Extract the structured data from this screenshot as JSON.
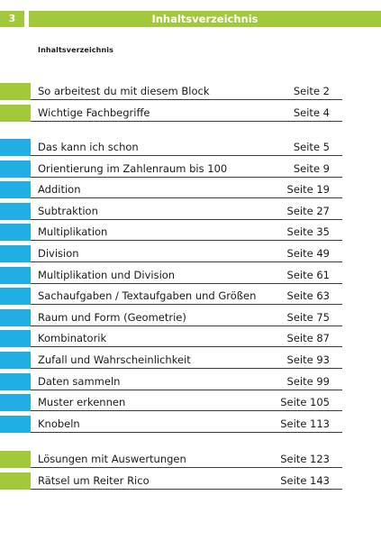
{
  "header": {
    "page_number": "3",
    "title": "Inhaltsverzeichnis"
  },
  "subtitle": "Inhaltsverzeichnis",
  "colors": {
    "green": "#a2c83c",
    "blue": "#20aee4"
  },
  "sections": [
    {
      "color": "green",
      "items": [
        {
          "label": "So arbeitest du mit diesem Block",
          "page": "Seite 2"
        },
        {
          "label": "Wichtige Fachbegriffe",
          "page": "Seite 4"
        }
      ]
    },
    {
      "color": "blue",
      "items": [
        {
          "label": "Das kann ich schon",
          "page": "Seite 5"
        },
        {
          "label": "Orientierung im Zahlenraum bis 100",
          "page": "Seite 9"
        },
        {
          "label": "Addition",
          "page": "Seite 19"
        },
        {
          "label": "Subtraktion",
          "page": "Seite 27"
        },
        {
          "label": "Multiplikation",
          "page": "Seite 35"
        },
        {
          "label": "Division",
          "page": "Seite 49"
        },
        {
          "label": "Multiplikation und Division",
          "page": "Seite 61"
        },
        {
          "label": "Sachaufgaben / Textaufgaben und Größen",
          "page": "Seite 63"
        },
        {
          "label": "Raum und Form (Geometrie)",
          "page": "Seite 75"
        },
        {
          "label": "Kombinatorik",
          "page": "Seite 87"
        },
        {
          "label": "Zufall und Wahrscheinlichkeit",
          "page": "Seite 93"
        },
        {
          "label": "Daten sammeln",
          "page": "Seite 99"
        },
        {
          "label": "Muster erkennen",
          "page": "Seite 105"
        },
        {
          "label": "Knobeln",
          "page": "Seite 113"
        }
      ]
    },
    {
      "color": "green",
      "items": [
        {
          "label": "Lösungen mit Auswertungen",
          "page": "Seite 123"
        },
        {
          "label": "Rätsel um Reiter Rico",
          "page": "Seite 143"
        }
      ]
    }
  ]
}
